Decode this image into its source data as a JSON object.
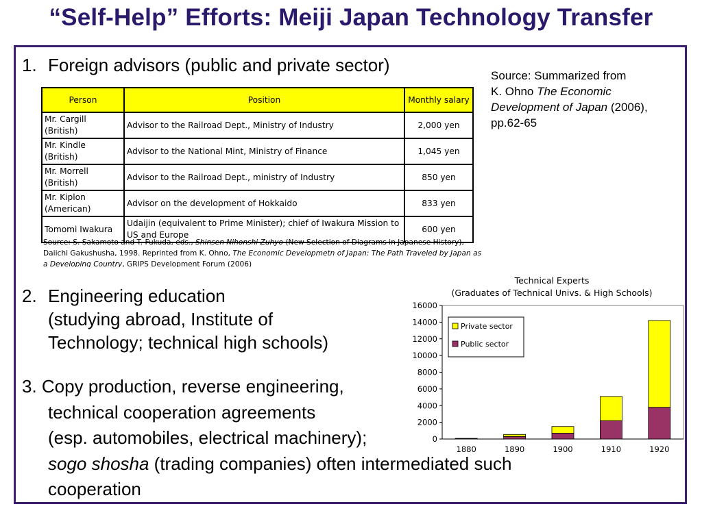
{
  "title": "“Self-Help” Efforts: Meiji Japan Technology Transfer",
  "item1": {
    "number": "1.",
    "text": "Foreign advisors (public and private sector)"
  },
  "source_right": {
    "line1": "Source: Summarized from",
    "line2_prefix": "K. Ohno ",
    "line2_italic": "The Economic",
    "line3_italic": "Development of Japan",
    "line3_suffix": " (2006),",
    "line4": "pp.62-65"
  },
  "table": {
    "headers": [
      "Person",
      "Position",
      "Monthly salary"
    ],
    "rows": [
      [
        "Mr. Cargill (British)",
        "Advisor to the Railroad Dept., Ministry of Industry",
        "2,000 yen"
      ],
      [
        "Mr. Kindle (British)",
        "Advisor to the National Mint, Ministry of Finance",
        "1,045 yen"
      ],
      [
        "Mr. Morrell (British)",
        "Advisor to the Railroad Dept., ministry of Industry",
        "850 yen"
      ],
      [
        "Mr. Kiplon (American)",
        "Advisor on the development of Hokkaido",
        "833 yen"
      ],
      [
        "Tomomi Iwakura",
        "Udaijin (equivalent to Prime Minister); chief of Iwakura Mission to US and Europe",
        "600 yen"
      ]
    ],
    "source": {
      "p1": "Source: S. Sakamoto and T. Fukuda, eds., ",
      "i1": "Shinsen Nihonshi Zuhyo",
      "p2": " (New Selection of Diagrams in Japanese History), Daiichi  Gakushusha, 1998. Reprinted from K. Ohno, ",
      "i2": "The Economic Developmetn of Japan: The Path Traveled by Japan as a Developing Country",
      "p3": ", GRIPS Development Forum (2006)"
    }
  },
  "item2": {
    "number": "2.",
    "line1": "Engineering education",
    "line2": "(studying abroad, Institute of",
    "line3": "Technology; technical high schools)"
  },
  "item3": {
    "line1": "3. Copy production, reverse engineering,",
    "line2": "technical cooperation agreements",
    "line3": "(esp. automobiles, electrical machinery);",
    "line4_italic": "sogo shosha",
    "line4_rest": " (trading companies) often intermediated such",
    "line5": "cooperation"
  },
  "chart_data": {
    "type": "bar",
    "stacked": true,
    "title": "Technical Experts",
    "subtitle": "(Graduates of Technical Univs. & High Schools)",
    "categories": [
      "1880",
      "1890",
      "1900",
      "1910",
      "1920"
    ],
    "series": [
      {
        "name": "Public sector",
        "color": "#993366",
        "values": [
          50,
          300,
          700,
          2200,
          3800
        ]
      },
      {
        "name": "Private sector",
        "color": "#ffff00",
        "values": [
          30,
          250,
          800,
          2900,
          10400
        ]
      }
    ],
    "ylim": [
      0,
      16000
    ],
    "yticks": [
      0,
      2000,
      4000,
      6000,
      8000,
      10000,
      12000,
      14000,
      16000
    ],
    "legend": "top-left",
    "legend_order": [
      "Private sector",
      "Public sector"
    ],
    "grid": false
  }
}
